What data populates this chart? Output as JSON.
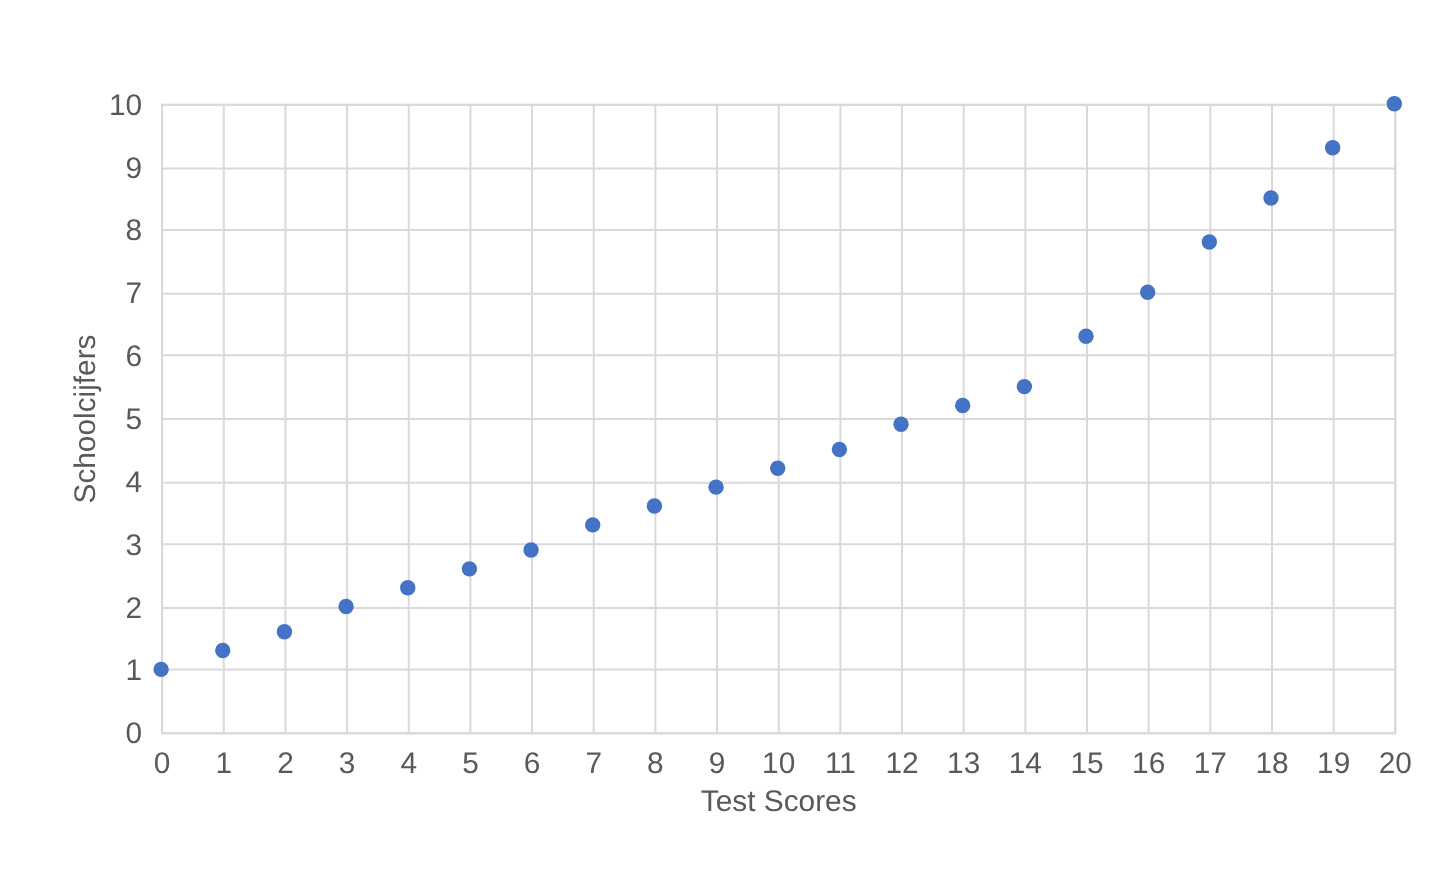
{
  "chart_data": {
    "type": "scatter",
    "xlabel": "Test Scores",
    "ylabel": "Schoolcijfers",
    "x": [
      0,
      1,
      2,
      3,
      4,
      5,
      6,
      7,
      8,
      9,
      10,
      11,
      12,
      13,
      14,
      15,
      16,
      17,
      18,
      19,
      20
    ],
    "series": [
      {
        "color": "#4472c4",
        "values": [
          1.0,
          1.3,
          1.6,
          2.0,
          2.3,
          2.6,
          2.9,
          3.3,
          3.6,
          3.9,
          4.2,
          4.5,
          4.9,
          5.2,
          5.5,
          6.3,
          7.0,
          7.8,
          8.5,
          9.3,
          10.0
        ]
      }
    ],
    "xlim": [
      0,
      20
    ],
    "xticks": [
      0,
      1,
      2,
      3,
      4,
      5,
      6,
      7,
      8,
      9,
      10,
      11,
      12,
      13,
      14,
      15,
      16,
      17,
      18,
      19,
      20
    ],
    "ylim": [
      0,
      10
    ],
    "yticks": [
      0,
      1,
      2,
      3,
      4,
      5,
      6,
      7,
      8,
      9,
      10
    ],
    "grid": true,
    "marker": "circle"
  }
}
